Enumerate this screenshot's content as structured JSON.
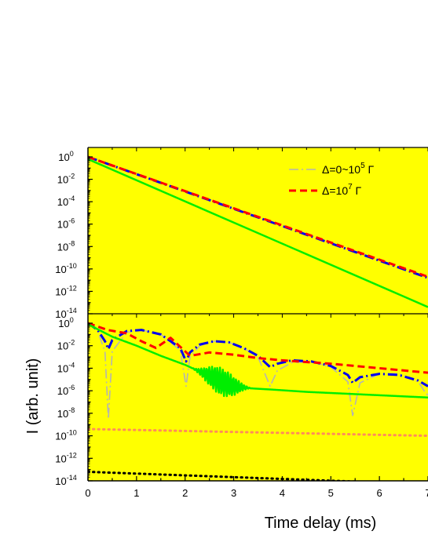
{
  "chart_data": [
    {
      "type": "area",
      "panel": "top",
      "title": "",
      "xlabel": "",
      "ylabel": "",
      "xlim": [
        0,
        7
      ],
      "ylim_exp": [
        -14,
        0
      ],
      "yscale": "log",
      "grid": false,
      "legend_position": "top-right",
      "y_tick_labels": [
        {
          "base": "10",
          "exp": "0"
        },
        {
          "base": "10",
          "exp": "-2"
        },
        {
          "base": "10",
          "exp": "-4"
        },
        {
          "base": "10",
          "exp": "-6"
        },
        {
          "base": "10",
          "exp": "-8"
        },
        {
          "base": "10",
          "exp": "-10"
        },
        {
          "base": "10",
          "exp": "-12"
        },
        {
          "base": "10",
          "exp": "-14"
        }
      ],
      "fill_color": "#ffff00",
      "legend": [
        {
          "prefix": "Δ=0~10",
          "sup": "5",
          "suffix": " Γ",
          "series": "gray_dashdot"
        },
        {
          "prefix": "Δ=10",
          "sup": "7",
          "suffix": " Γ",
          "series": "red_dash"
        }
      ],
      "series": [
        {
          "key": "blue_dashdot",
          "color": "#0000ee",
          "style": "dashdot",
          "x": [
            0,
            7
          ],
          "log10y": [
            0.0,
            -10.8
          ]
        },
        {
          "key": "red_dash",
          "color": "#ff0000",
          "style": "dash",
          "x": [
            0,
            7
          ],
          "log10y": [
            0.0,
            -10.7
          ]
        },
        {
          "key": "green_solid",
          "color": "#00ee00",
          "style": "solid",
          "x": [
            0,
            7
          ],
          "log10y": [
            -0.2,
            -13.4
          ]
        }
      ]
    },
    {
      "type": "area",
      "panel": "bottom",
      "title": "",
      "xlabel": "Time delay (ms)",
      "ylabel": "I (arb. unit)",
      "xlim": [
        0,
        7
      ],
      "ylim_exp": [
        -14,
        0
      ],
      "yscale": "log",
      "grid": false,
      "x_ticks": [
        0,
        1,
        2,
        3,
        4,
        5,
        6,
        7
      ],
      "x_tick_labels": [
        "0",
        "1",
        "2",
        "3",
        "4",
        "5",
        "6",
        "7"
      ],
      "y_tick_labels": [
        {
          "base": "10",
          "exp": "0"
        },
        {
          "base": "10",
          "exp": "-2"
        },
        {
          "base": "10",
          "exp": "-4"
        },
        {
          "base": "10",
          "exp": "-6"
        },
        {
          "base": "10",
          "exp": "-8"
        },
        {
          "base": "10",
          "exp": "-10"
        },
        {
          "base": "10",
          "exp": "-12"
        },
        {
          "base": "10",
          "exp": "-14"
        }
      ],
      "fill_color": "#ffff00",
      "series": [
        {
          "key": "gray_dashdot",
          "color": "#b4b4b4",
          "style": "dashdot",
          "x": [
            0,
            0.2,
            0.35,
            0.42,
            0.5,
            0.8,
            1.1,
            1.5,
            1.9,
            2.02,
            2.1,
            2.3,
            2.6,
            2.9,
            3.2,
            3.5,
            3.75,
            3.9,
            4.2,
            4.6,
            5.0,
            5.35,
            5.45,
            5.6,
            6.0,
            6.4,
            6.8,
            6.95,
            7.0
          ],
          "log10y": [
            0,
            -0.7,
            -2.5,
            -8.5,
            -2.5,
            -0.8,
            -0.6,
            -1.0,
            -2.4,
            -5.6,
            -3.0,
            -2.0,
            -1.6,
            -1.7,
            -2.2,
            -3.0,
            -5.6,
            -4.2,
            -3.5,
            -3.4,
            -3.9,
            -5.2,
            -8.2,
            -5.3,
            -4.5,
            -4.5,
            -5.2,
            -6.2,
            -6.4
          ]
        },
        {
          "key": "blue_dashdot",
          "color": "#0000ee",
          "style": "dashdot",
          "x": [
            0,
            0.2,
            0.35,
            0.42,
            0.5,
            0.8,
            1.1,
            1.5,
            1.9,
            2.02,
            2.1,
            2.3,
            2.6,
            2.9,
            3.2,
            3.5,
            3.75,
            3.9,
            4.2,
            4.6,
            5.0,
            5.35,
            5.45,
            5.6,
            6.0,
            6.4,
            6.8,
            7.0
          ],
          "log10y": [
            0,
            -0.6,
            -1.6,
            -2.3,
            -1.5,
            -0.7,
            -0.6,
            -1.0,
            -2.2,
            -3.4,
            -2.6,
            -1.9,
            -1.6,
            -1.7,
            -2.2,
            -2.9,
            -3.9,
            -3.6,
            -3.3,
            -3.4,
            -3.8,
            -4.6,
            -5.3,
            -4.8,
            -4.5,
            -4.6,
            -5.1,
            -5.6
          ]
        },
        {
          "key": "red_dash",
          "color": "#ff0000",
          "style": "dash",
          "x": [
            0,
            0.4,
            0.8,
            1.1,
            1.4,
            1.7,
            2.1,
            2.5,
            3.0,
            3.5,
            4.0,
            5.0,
            6.0,
            7.0
          ],
          "log10y": [
            0,
            -0.6,
            -0.9,
            -1.6,
            -2.2,
            -1.3,
            -2.9,
            -2.6,
            -2.8,
            -3.1,
            -3.3,
            -3.6,
            -4.0,
            -4.4
          ]
        },
        {
          "key": "green_solid",
          "color": "#00ee00",
          "style": "solid",
          "x": [
            0,
            0.5,
            1.0,
            1.5,
            2.0,
            2.4,
            2.8,
            3.0,
            3.4,
            3.8,
            4.5,
            5.5,
            7.0
          ],
          "log10y": [
            -0.1,
            -1.2,
            -2.0,
            -2.9,
            -3.7,
            -4.5,
            -5.3,
            -5.6,
            -5.8,
            -5.9,
            -6.1,
            -6.3,
            -6.6
          ],
          "oscillation": {
            "x_start": 2.1,
            "x_end": 3.4,
            "amplitude_decades": 2.4
          }
        },
        {
          "key": "orange_dotted",
          "color": "#ff8c5a",
          "style": "dotted",
          "x": [
            0,
            7
          ],
          "log10y": [
            -9.4,
            -10.0
          ]
        },
        {
          "key": "black_dotted",
          "color": "#000000",
          "style": "dotted",
          "x": [
            0,
            7
          ],
          "log10y": [
            -13.2,
            -14.3
          ]
        }
      ]
    }
  ]
}
